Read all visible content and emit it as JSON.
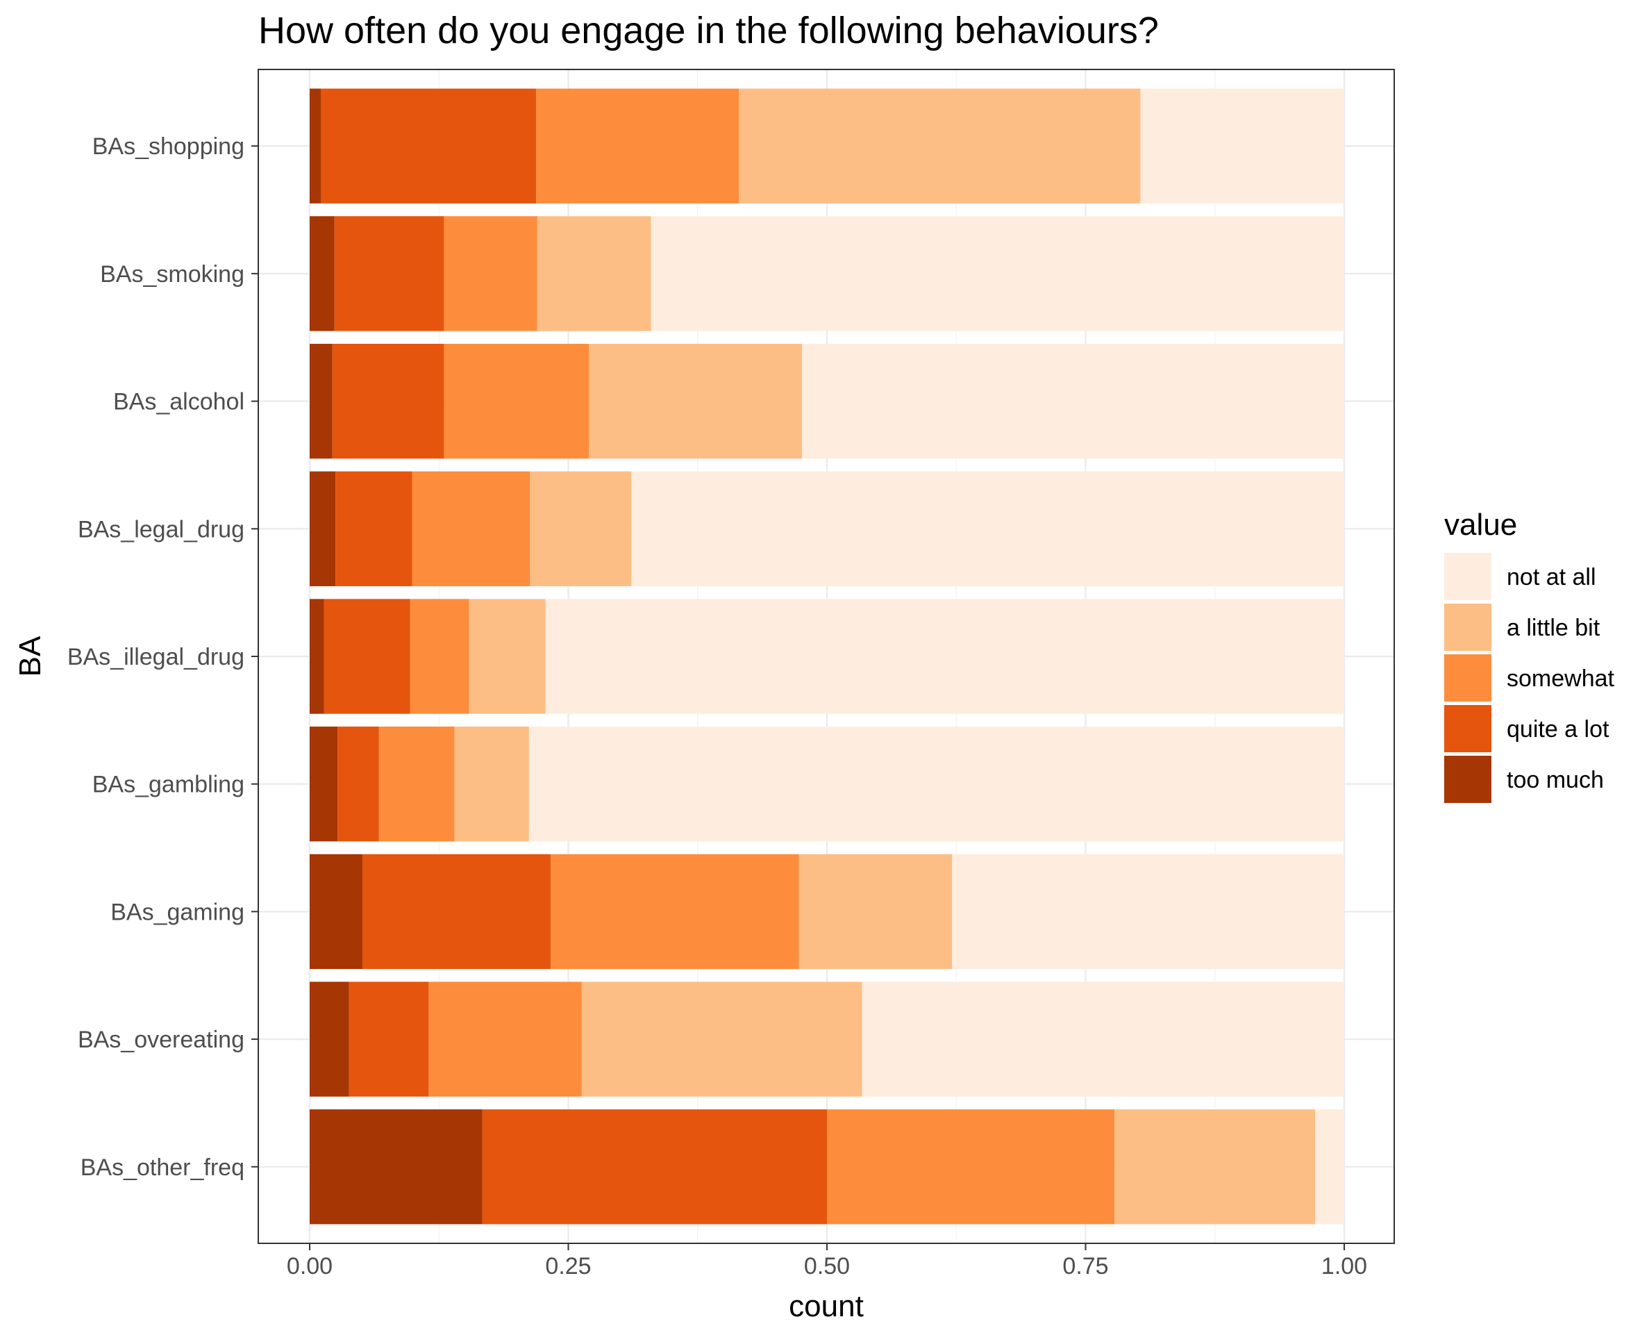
{
  "chart_data": {
    "type": "bar",
    "orientation": "horizontal",
    "stacked": true,
    "title": "How often do you engage in the following behaviours?",
    "xlabel": "count",
    "ylabel": "BA",
    "xlim": [
      0,
      1
    ],
    "x_ticks": [
      "0.00",
      "0.25",
      "0.50",
      "0.75",
      "1.00"
    ],
    "grid": true,
    "legend_title": "value",
    "legend_position": "right",
    "categories": [
      "BAs_shopping",
      "BAs_smoking",
      "BAs_alcohol",
      "BAs_legal_drug",
      "BAs_illegal_drug",
      "BAs_gambling",
      "BAs_gaming",
      "BAs_overeating",
      "BAs_other_freq"
    ],
    "series": [
      {
        "name": "too much",
        "color": "#A63603",
        "values": [
          0.011,
          0.024,
          0.022,
          0.025,
          0.014,
          0.027,
          0.051,
          0.038,
          0.167
        ]
      },
      {
        "name": "quite a lot",
        "color": "#E6550D",
        "values": [
          0.208,
          0.106,
          0.108,
          0.074,
          0.083,
          0.04,
          0.182,
          0.077,
          0.333
        ]
      },
      {
        "name": "somewhat",
        "color": "#FD8D3C",
        "values": [
          0.196,
          0.09,
          0.14,
          0.114,
          0.057,
          0.073,
          0.24,
          0.148,
          0.278
        ]
      },
      {
        "name": "a little bit",
        "color": "#FDBE85",
        "values": [
          0.388,
          0.11,
          0.206,
          0.098,
          0.074,
          0.072,
          0.148,
          0.271,
          0.194
        ]
      },
      {
        "name": "not at all",
        "color": "#FEEDDE",
        "values": [
          0.197,
          0.67,
          0.524,
          0.689,
          0.772,
          0.788,
          0.379,
          0.466,
          0.028
        ]
      }
    ],
    "legend_order": [
      "not at all",
      "a little bit",
      "somewhat",
      "quite a lot",
      "too much"
    ]
  }
}
